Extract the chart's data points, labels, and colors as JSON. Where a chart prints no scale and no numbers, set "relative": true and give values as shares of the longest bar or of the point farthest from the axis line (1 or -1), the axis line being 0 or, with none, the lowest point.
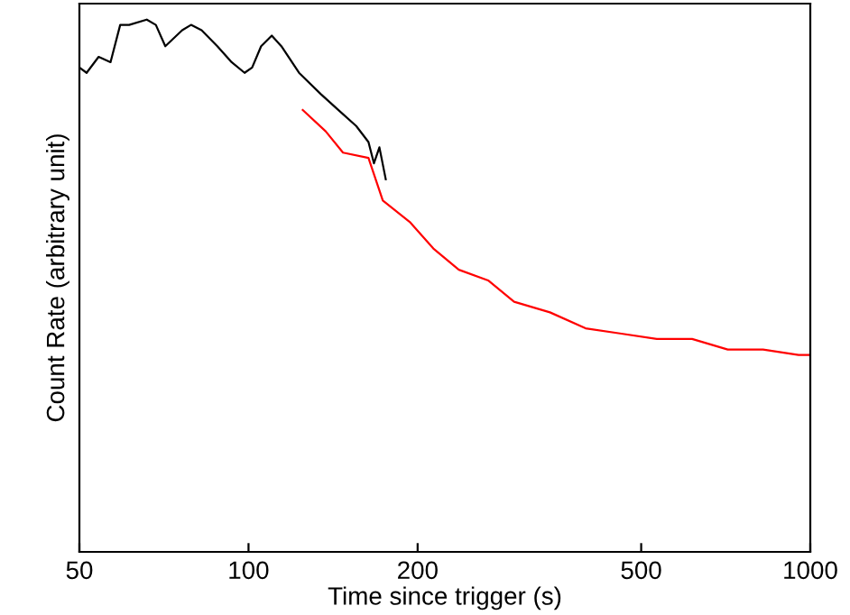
{
  "chart_data": {
    "type": "line",
    "xlabel": "Time since trigger (s)",
    "ylabel": "Count Rate (arbitrary unit)",
    "log": "x",
    "relative": true,
    "xlim": [
      50,
      1000
    ],
    "xticks": [
      50,
      100,
      200,
      500,
      1000
    ],
    "grid": false,
    "legend": false,
    "marker": "none",
    "line_style": "solid",
    "series": [
      {
        "color": "#000000",
        "x": [
          50,
          51.5,
          54.1,
          56.8,
          59.1,
          61.3,
          65.9,
          68.4,
          71.1,
          76.2,
          79.0,
          82.5,
          88.0,
          93.3,
          98.4,
          101.5,
          105.3,
          110,
          114.4,
          123,
          134.5,
          144.6,
          155.5,
          163.5,
          167.2,
          171,
          175.5
        ],
        "values": [
          0.91,
          0.9,
          0.93,
          0.92,
          0.99,
          0.99,
          1.0,
          0.99,
          0.95,
          0.98,
          0.99,
          0.98,
          0.95,
          0.92,
          0.9,
          0.91,
          0.95,
          0.97,
          0.95,
          0.9,
          0.86,
          0.83,
          0.8,
          0.77,
          0.73,
          0.76,
          0.7
        ]
      },
      {
        "color": "#ff0000",
        "x": [
          124.9,
          137.2,
          147.3,
          163.5,
          173.4,
          193.6,
          213.3,
          236.8,
          267,
          297,
          344,
          398,
          461,
          533,
          616,
          713,
          824,
          953,
          997
        ],
        "values": [
          0.83,
          0.79,
          0.75,
          0.74,
          0.66,
          0.62,
          0.57,
          0.53,
          0.51,
          0.47,
          0.45,
          0.42,
          0.41,
          0.4,
          0.4,
          0.38,
          0.38,
          0.37,
          0.37
        ]
      }
    ]
  }
}
